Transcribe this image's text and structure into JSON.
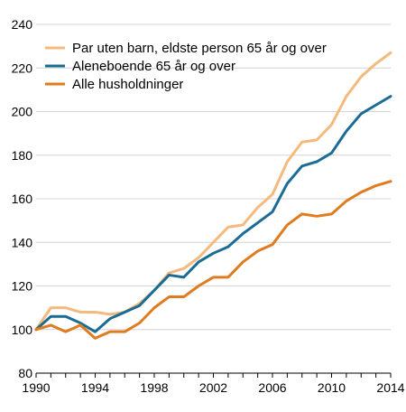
{
  "chart_data": {
    "type": "line",
    "x": [
      1990,
      1991,
      1992,
      1993,
      1994,
      1995,
      1996,
      1997,
      1998,
      1999,
      2000,
      2001,
      2002,
      2003,
      2004,
      2005,
      2006,
      2007,
      2008,
      2009,
      2010,
      2011,
      2012,
      2013,
      2014
    ],
    "xticks": [
      1990,
      1994,
      1998,
      2002,
      2006,
      2010,
      2014
    ],
    "xlim": [
      1990,
      2014
    ],
    "yticks": [
      80,
      100,
      120,
      140,
      160,
      180,
      200,
      220,
      240
    ],
    "ylim": [
      80,
      240
    ],
    "grid": "horizontal",
    "legend_position": "top-left",
    "series": [
      {
        "name": "Par uten barn, eldste person 65 år og over",
        "color": "#f5b97c",
        "values": [
          100,
          110,
          110,
          108,
          108,
          107,
          108,
          112,
          118,
          126,
          128,
          133,
          140,
          147,
          148,
          156,
          162,
          177,
          186,
          187,
          194,
          207,
          216,
          222,
          227
        ]
      },
      {
        "name": "Aleneboende 65 år og over",
        "color": "#1b6c95",
        "values": [
          100,
          106,
          106,
          103,
          99,
          105,
          108,
          111,
          118,
          125,
          124,
          131,
          135,
          138,
          144,
          149,
          154,
          167,
          175,
          177,
          181,
          191,
          199,
          203,
          207
        ]
      },
      {
        "name": "Alle husholdninger",
        "color": "#e07b1f",
        "values": [
          100,
          102,
          99,
          102,
          96,
          99,
          99,
          103,
          110,
          115,
          115,
          120,
          124,
          124,
          131,
          136,
          139,
          148,
          153,
          152,
          153,
          159,
          163,
          166,
          168
        ]
      }
    ]
  }
}
